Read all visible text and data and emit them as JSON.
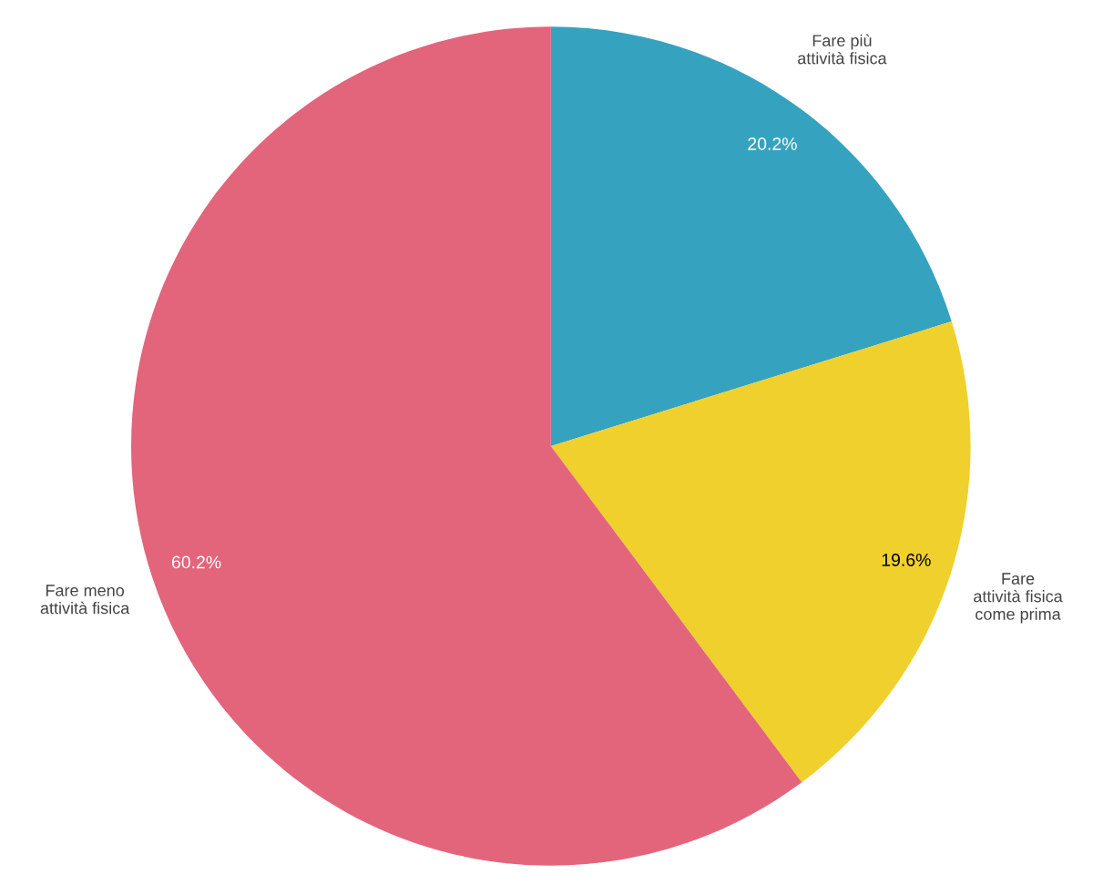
{
  "chart_data": {
    "type": "pie",
    "categories": [
      "Fare più\nattività fisica",
      "Fare\nattività fisica\ncome prima",
      "Fare meno\nattività fisica"
    ],
    "values": [
      20.2,
      19.6,
      60.2
    ],
    "colors": [
      "#35a3bf",
      "#f0d02c",
      "#e3657b"
    ],
    "value_labels": [
      "20.2%",
      "19.6%",
      "60.2%"
    ],
    "legend": false
  }
}
